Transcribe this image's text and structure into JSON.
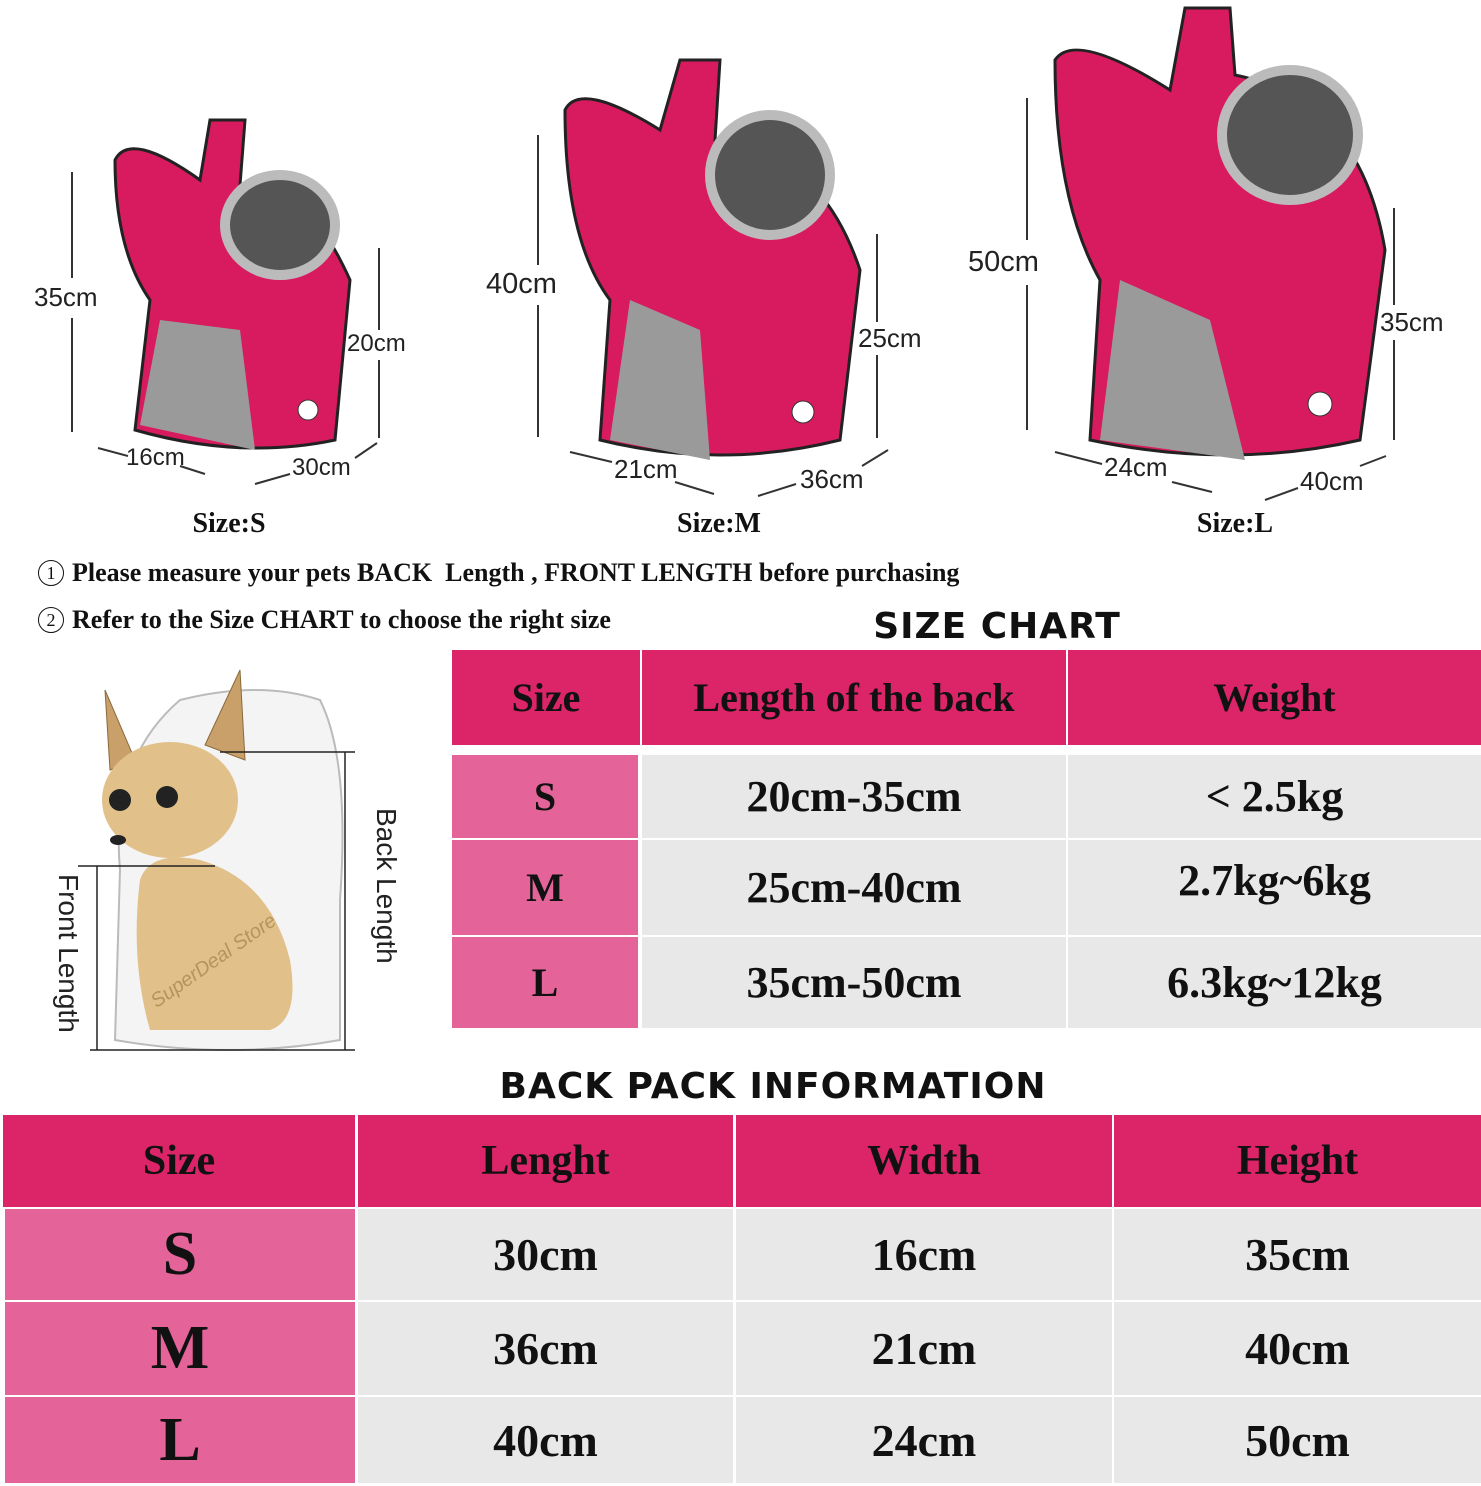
{
  "backpacks": [
    {
      "size_label": "Size:S",
      "height": "35cm",
      "depth": "20cm",
      "width": "16cm",
      "length": "30cm"
    },
    {
      "size_label": "Size:M",
      "height": "40cm",
      "depth": "25cm",
      "width": "21cm",
      "length": "36cm"
    },
    {
      "size_label": "Size:L",
      "height": "50cm",
      "depth": "35cm",
      "width": "24cm",
      "length": "40cm"
    }
  ],
  "notes": [
    {
      "num": "1",
      "text": "Please measure your pets BACK  Length , FRONT LENGTH before purchasing"
    },
    {
      "num": "2",
      "text": "Refer to the Size CHART to choose the right size"
    }
  ],
  "illustration": {
    "back_length": "Back Length",
    "front_length": "Front Length",
    "watermark": "SuperDeal Store"
  },
  "size_chart": {
    "title": "SIZE CHART",
    "headers": [
      "Size",
      "Length of the back",
      "Weight"
    ],
    "rows": [
      [
        "S",
        "20cm-35cm",
        "< 2.5kg"
      ],
      [
        "M",
        "25cm-40cm",
        "2.7kg~6kg"
      ],
      [
        "L",
        "35cm-50cm",
        "6.3kg~12kg"
      ]
    ]
  },
  "backpack_info": {
    "title": "BACK PACK INFORMATION",
    "headers": [
      "Size",
      "Lenght",
      "Width",
      "Height"
    ],
    "rows": [
      [
        "S",
        "30cm",
        "16cm",
        "35cm"
      ],
      [
        "M",
        "36cm",
        "21cm",
        "40cm"
      ],
      [
        "L",
        "40cm",
        "24cm",
        "50cm"
      ]
    ]
  },
  "colors": {
    "header": "#dc2468",
    "size_cell": "#e4649a",
    "body_cell": "#e8e8e8",
    "bag": "#d81b5e",
    "mesh": "#9a9a9a"
  }
}
